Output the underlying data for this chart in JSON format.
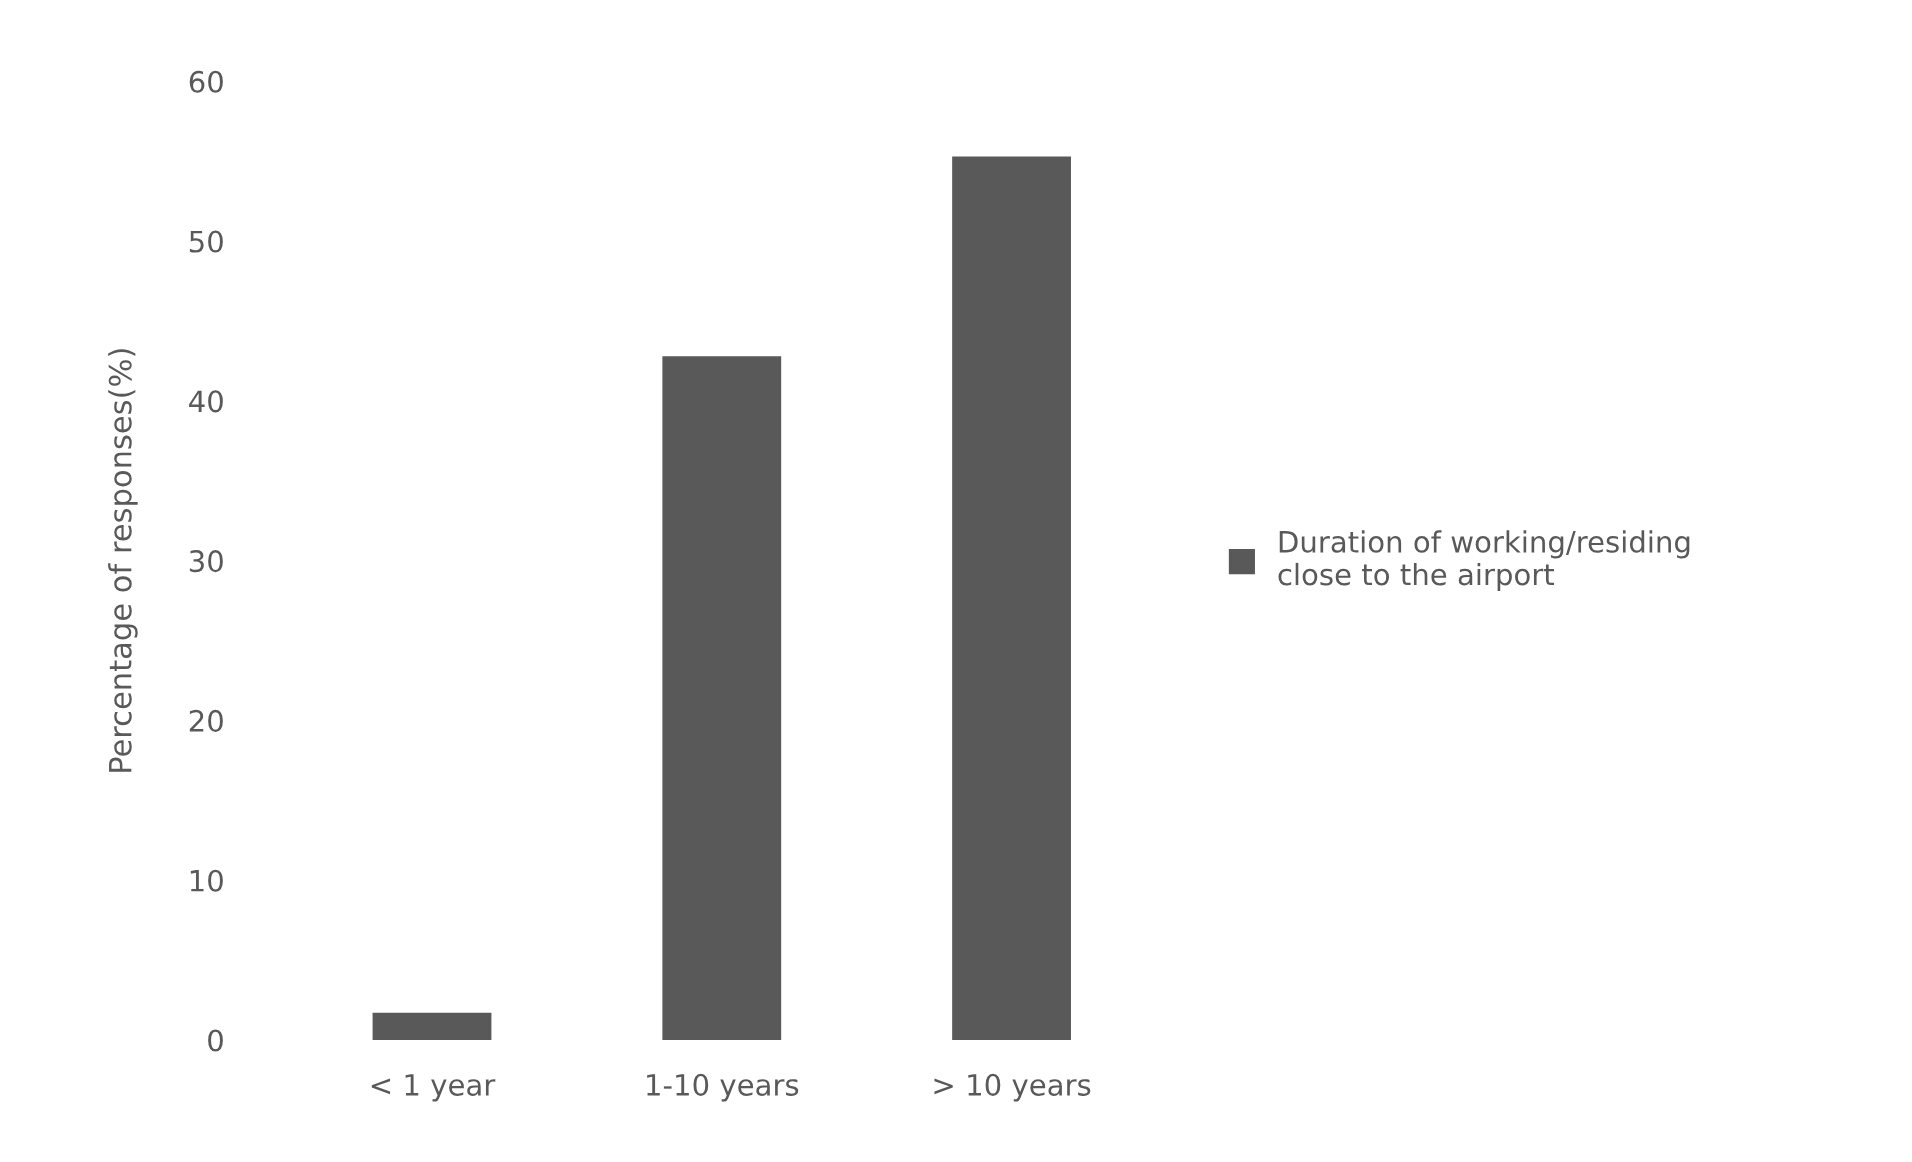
{
  "chart_data": {
    "type": "bar",
    "ylabel": "Percentage of responses(%)",
    "categories": [
      "< 1 year",
      "1-10 years",
      "> 10 years"
    ],
    "series": [
      {
        "name": "Duration of working/residing\nclose to the airport",
        "color": "#595959",
        "values": [
          1.7,
          42.8,
          55.3
        ]
      }
    ],
    "ylim": [
      0,
      60
    ],
    "yticks": [
      0,
      10,
      20,
      30,
      40,
      50,
      60
    ],
    "grid": false,
    "legend": "right"
  }
}
